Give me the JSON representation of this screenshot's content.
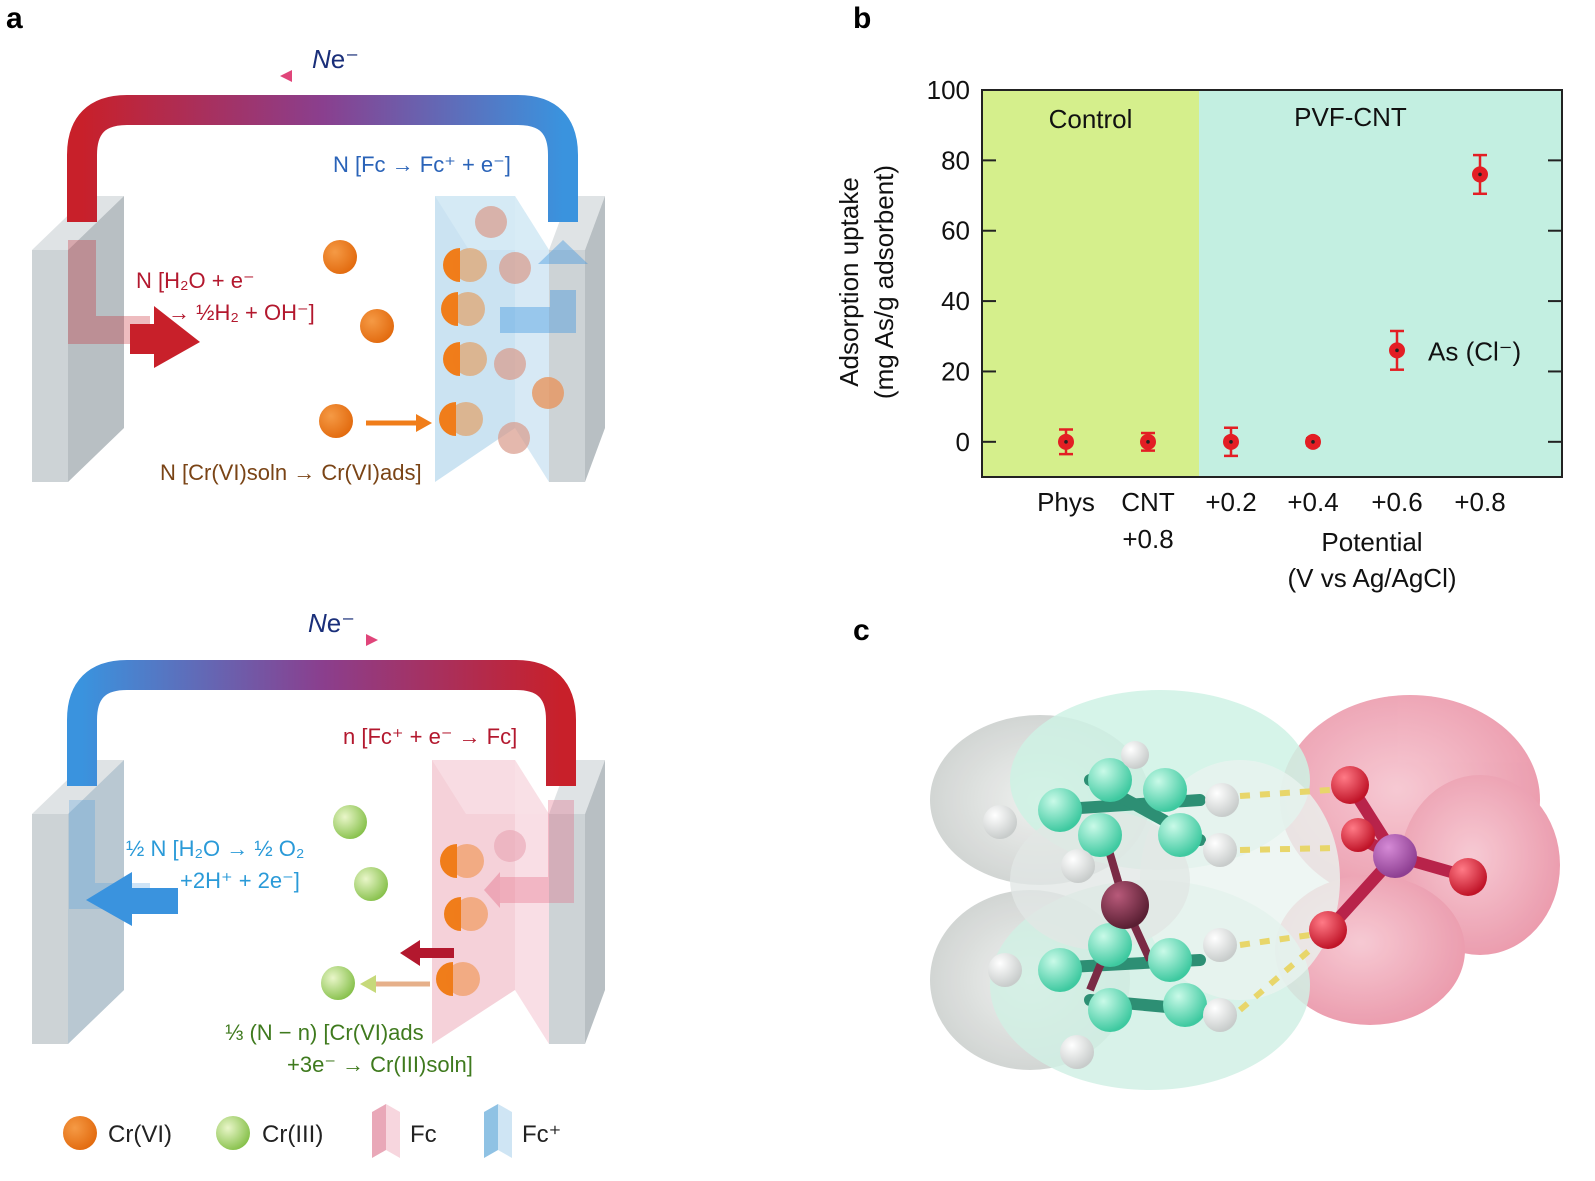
{
  "panels": {
    "a": "a",
    "b": "b",
    "c": "c"
  },
  "diagram_top": {
    "electron_label_n": "N",
    "electron_label_e": "e⁻",
    "right_reaction": "N [Fc → Fc⁺ + e⁻]",
    "left_reaction_line1": "N [H₂O + e⁻",
    "left_reaction_line2": "→ ½H₂ + OH⁻]",
    "adsorption_reaction": "N [Cr(VI)soln → Cr(VI)ads]"
  },
  "diagram_bottom": {
    "electron_label_n": "N",
    "electron_label_e": "e⁻",
    "right_reaction": "n [Fc⁺ + e⁻ → Fc]",
    "left_reaction_line1": "½ N [H₂O → ½ O₂",
    "left_reaction_line2": "+2H⁺ + 2e⁻]",
    "reduction_line1": "⅓ (N − n) [Cr(VI)ads",
    "reduction_line2": "+3e⁻ → Cr(III)soln]"
  },
  "legend": [
    {
      "label": "Cr(VI)",
      "icon": "orange-sphere-icon",
      "color": "#f07d1a"
    },
    {
      "label": "Cr(III)",
      "icon": "green-sphere-icon",
      "color": "#a6d96a"
    },
    {
      "label": "Fc",
      "icon": "pink-electrode-icon",
      "color": "#f3c6d0"
    },
    {
      "label": "Fc⁺",
      "icon": "blue-electrode-icon",
      "color": "#b9d9ee"
    }
  ],
  "colors": {
    "red": "#c8202a",
    "blue": "#3a93de",
    "orange": "#f07d1a",
    "green": "#a6d96a",
    "control_bg": "#d5ef8c",
    "pvf_bg": "#c3efe1",
    "marker": "#e31e24"
  },
  "chart_data": {
    "type": "scatter",
    "region_labels": [
      "Control",
      "PVF-CNT"
    ],
    "categories": [
      [
        "Phys"
      ],
      [
        "CNT",
        "+0.8"
      ],
      [
        "+0.2"
      ],
      [
        "+0.4"
      ],
      [
        "+0.6"
      ],
      [
        "+0.8"
      ]
    ],
    "series": [
      {
        "name": "As (Cl⁻)",
        "values": [
          0,
          0,
          0,
          0,
          26,
          76
        ],
        "errors": [
          3.5,
          2.5,
          4,
          1,
          5.5,
          5.5
        ]
      }
    ],
    "xlabel_line1": "Potential",
    "xlabel_line2": "(V vs Ag/AgCl)",
    "ylabel_line1": "Adsorption uptake",
    "ylabel_line2": "(mg As/g adsorbent)",
    "yticks": [
      0,
      20,
      40,
      60,
      80,
      100
    ],
    "ylim": [
      -10,
      100
    ],
    "grid": false
  }
}
